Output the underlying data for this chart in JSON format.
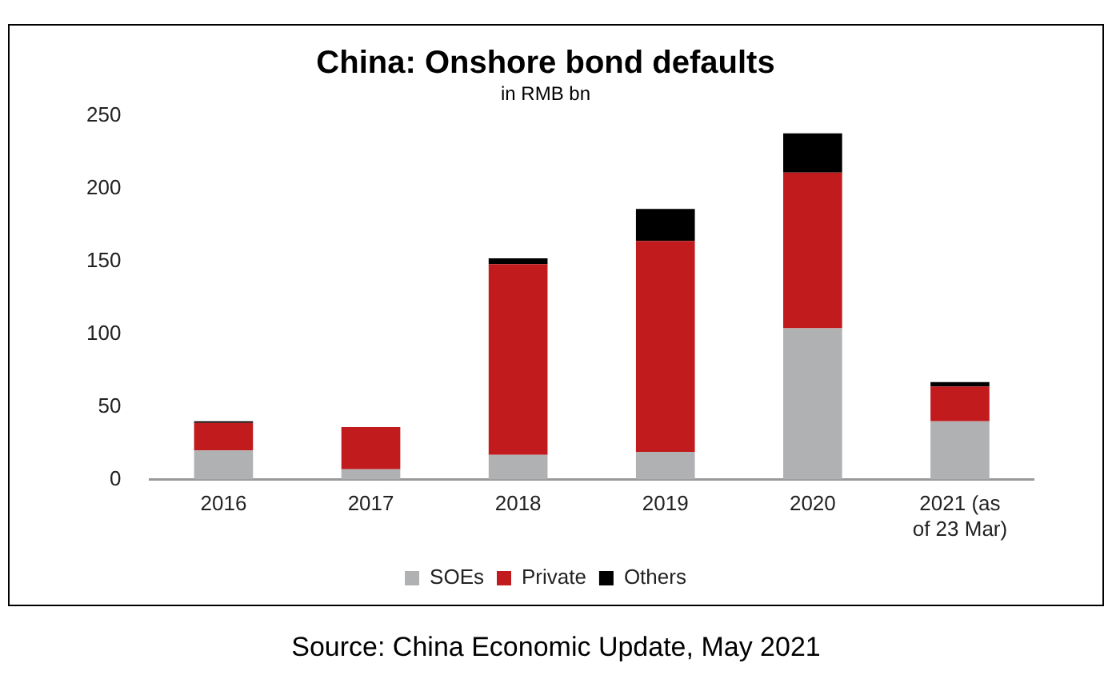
{
  "chart_data": {
    "type": "bar",
    "title": "China: Onshore bond defaults",
    "subtitle": "in RMB bn",
    "categories": [
      "2016",
      "2017",
      "2018",
      "2019",
      "2020",
      "2021 (as of 23 Mar)"
    ],
    "series": [
      {
        "name": "SOEs",
        "color": "#b0b1b3",
        "values": [
          20,
          7,
          17,
          19,
          104,
          40
        ]
      },
      {
        "name": "Private",
        "color": "#c11b1e",
        "values": [
          19,
          29,
          131,
          145,
          107,
          24
        ]
      },
      {
        "name": "Others",
        "color": "#000000",
        "values": [
          1,
          0,
          4,
          22,
          27,
          3
        ]
      }
    ],
    "stacked": true,
    "ylim": [
      0,
      250
    ],
    "yticks": [
      0,
      50,
      100,
      150,
      200,
      250
    ],
    "grid": false,
    "legend": "bottom",
    "annotations": [
      "Source: China Economic Update, May 2021"
    ]
  }
}
